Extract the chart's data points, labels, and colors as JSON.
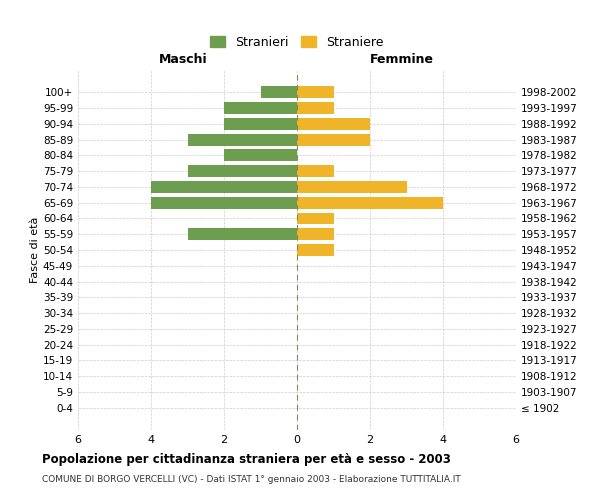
{
  "age_groups": [
    "0-4",
    "5-9",
    "10-14",
    "15-19",
    "20-24",
    "25-29",
    "30-34",
    "35-39",
    "40-44",
    "45-49",
    "50-54",
    "55-59",
    "60-64",
    "65-69",
    "70-74",
    "75-79",
    "80-84",
    "85-89",
    "90-94",
    "95-99",
    "100+"
  ],
  "birth_years": [
    "1998-2002",
    "1993-1997",
    "1988-1992",
    "1983-1987",
    "1978-1982",
    "1973-1977",
    "1968-1972",
    "1963-1967",
    "1958-1962",
    "1953-1957",
    "1948-1952",
    "1943-1947",
    "1938-1942",
    "1933-1937",
    "1928-1932",
    "1923-1927",
    "1918-1922",
    "1913-1917",
    "1908-1912",
    "1903-1907",
    "≤ 1902"
  ],
  "maschi": [
    1,
    2,
    2,
    3,
    2,
    3,
    4,
    4,
    0,
    3,
    0,
    0,
    0,
    0,
    0,
    0,
    0,
    0,
    0,
    0,
    0
  ],
  "femmine": [
    1,
    1,
    2,
    2,
    0,
    1,
    3,
    4,
    1,
    1,
    1,
    0,
    0,
    0,
    0,
    0,
    0,
    0,
    0,
    0,
    0
  ],
  "maschi_color": "#6d9e50",
  "femmine_color": "#f0b429",
  "xlim": 6,
  "title": "Popolazione per cittadinanza straniera per età e sesso - 2003",
  "subtitle": "COMUNE DI BORGO VERCELLI (VC) - Dati ISTAT 1° gennaio 2003 - Elaborazione TUTTITALIA.IT",
  "ylabel_left": "Fasce di età",
  "label_maschi": "Maschi",
  "label_femmine": "Femmine",
  "legend_stranieri": "Stranieri",
  "legend_straniere": "Straniere",
  "background_color": "#ffffff",
  "grid_color": "#cccccc"
}
